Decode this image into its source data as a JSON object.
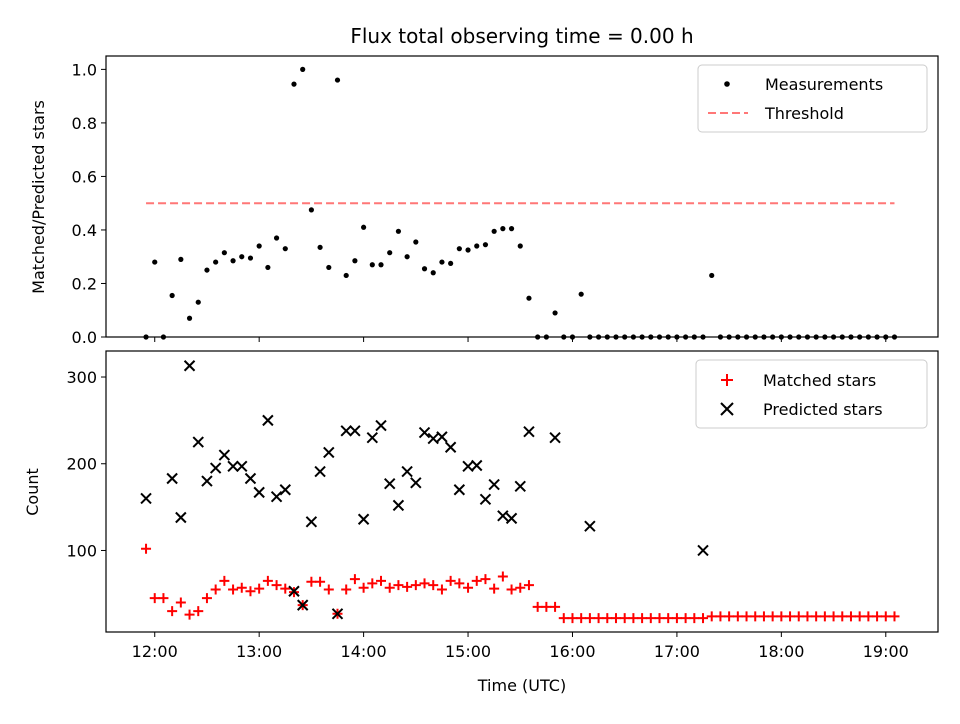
{
  "chart_data": [
    {
      "type": "scatter",
      "title": "Flux total observing time = 0.00 h",
      "xlabel": "",
      "ylabel": "Matched/Predicted stars",
      "xlim": [
        "11:32",
        "19:30"
      ],
      "ylim": [
        0,
        1.05
      ],
      "yticks": [
        "0.0",
        "0.2",
        "0.4",
        "0.6",
        "0.8",
        "1.0"
      ],
      "grid": false,
      "legend_position": "top-right",
      "series": [
        {
          "name": "Measurements",
          "color": "#000000",
          "marker": "dot",
          "x": [
            "11:55",
            "12:00",
            "12:05",
            "12:10",
            "12:15",
            "12:20",
            "12:25",
            "12:30",
            "12:35",
            "12:40",
            "12:45",
            "12:50",
            "12:55",
            "13:00",
            "13:05",
            "13:10",
            "13:15",
            "13:20",
            "13:25",
            "13:30",
            "13:35",
            "13:40",
            "13:45",
            "13:50",
            "13:55",
            "14:00",
            "14:05",
            "14:10",
            "14:15",
            "14:20",
            "14:25",
            "14:30",
            "14:35",
            "14:40",
            "14:45",
            "14:50",
            "14:55",
            "15:00",
            "15:05",
            "15:10",
            "15:15",
            "15:20",
            "15:25",
            "15:30",
            "15:35",
            "15:40",
            "15:45",
            "15:50",
            "15:55",
            "16:00",
            "16:05",
            "16:10",
            "16:15",
            "16:20",
            "16:25",
            "16:30",
            "16:35",
            "16:40",
            "16:45",
            "16:50",
            "16:55",
            "17:00",
            "17:05",
            "17:10",
            "17:15",
            "17:20",
            "17:25",
            "17:30",
            "17:35",
            "17:40",
            "17:45",
            "17:50",
            "17:55",
            "18:00",
            "18:05",
            "18:10",
            "18:15",
            "18:20",
            "18:25",
            "18:30",
            "18:35",
            "18:40",
            "18:45",
            "18:50",
            "18:55",
            "19:00",
            "19:05"
          ],
          "y": [
            0.0,
            0.28,
            0.0,
            0.155,
            0.29,
            0.07,
            0.13,
            0.25,
            0.28,
            0.315,
            0.285,
            0.3,
            0.295,
            0.34,
            0.26,
            0.37,
            0.33,
            0.945,
            1.0,
            0.475,
            0.335,
            0.26,
            0.96,
            0.23,
            0.285,
            0.41,
            0.27,
            0.27,
            0.315,
            0.395,
            0.3,
            0.355,
            0.255,
            0.24,
            0.28,
            0.275,
            0.33,
            0.325,
            0.34,
            0.345,
            0.395,
            0.405,
            0.405,
            0.34,
            0.145,
            0.0,
            0.0,
            0.09,
            0.0,
            0.0,
            0.16,
            0.0,
            0.0,
            0.0,
            0.0,
            0.0,
            0.0,
            0.0,
            0.0,
            0.0,
            0.0,
            0.0,
            0.0,
            0.0,
            0.0,
            0.23,
            0.0,
            0.0,
            0.0,
            0.0,
            0.0,
            0.0,
            0.0,
            0.0,
            0.0,
            0.0,
            0.0,
            0.0,
            0.0,
            0.0,
            0.0,
            0.0,
            0.0,
            0.0,
            0.0,
            0.0,
            0.0
          ]
        },
        {
          "name": "Threshold",
          "color": "#ff7777",
          "style": "dashed",
          "x": [
            "11:55",
            "19:05"
          ],
          "y": [
            0.5,
            0.5
          ]
        }
      ]
    },
    {
      "type": "scatter",
      "title": "",
      "xlabel": "Time (UTC)",
      "ylabel": "Count",
      "xlim": [
        "11:32",
        "19:30"
      ],
      "ylim": [
        6,
        330
      ],
      "xticks": [
        "12:00",
        "13:00",
        "14:00",
        "15:00",
        "16:00",
        "17:00",
        "18:00",
        "19:00"
      ],
      "yticks": [
        "100",
        "200",
        "300"
      ],
      "grid": false,
      "legend_position": "top-right",
      "series": [
        {
          "name": "Matched stars",
          "color": "#ff0000",
          "marker": "plus",
          "x": [
            "11:55",
            "12:00",
            "12:05",
            "12:10",
            "12:15",
            "12:20",
            "12:25",
            "12:30",
            "12:35",
            "12:40",
            "12:45",
            "12:50",
            "12:55",
            "13:00",
            "13:05",
            "13:10",
            "13:15",
            "13:20",
            "13:25",
            "13:30",
            "13:35",
            "13:40",
            "13:45",
            "13:50",
            "13:55",
            "14:00",
            "14:05",
            "14:10",
            "14:15",
            "14:20",
            "14:25",
            "14:30",
            "14:35",
            "14:40",
            "14:45",
            "14:50",
            "14:55",
            "15:00",
            "15:05",
            "15:10",
            "15:15",
            "15:20",
            "15:25",
            "15:30",
            "15:35",
            "15:40",
            "15:45",
            "15:50",
            "15:55",
            "16:00",
            "16:05",
            "16:10",
            "16:15",
            "16:20",
            "16:25",
            "16:30",
            "16:35",
            "16:40",
            "16:45",
            "16:50",
            "16:55",
            "17:00",
            "17:05",
            "17:10",
            "17:15",
            "17:20",
            "17:25",
            "17:30",
            "17:35",
            "17:40",
            "17:45",
            "17:50",
            "17:55",
            "18:00",
            "18:05",
            "18:10",
            "18:15",
            "18:20",
            "18:25",
            "18:30",
            "18:35",
            "18:40",
            "18:45",
            "18:50",
            "18:55",
            "19:00",
            "19:05"
          ],
          "y": [
            102,
            45,
            45,
            30,
            40,
            26,
            30,
            45,
            55,
            65,
            55,
            57,
            53,
            56,
            65,
            60,
            56,
            52,
            37,
            64,
            64,
            55,
            27,
            55,
            67,
            57,
            62,
            65,
            57,
            60,
            58,
            60,
            62,
            60,
            55,
            65,
            62,
            57,
            65,
            67,
            56,
            70,
            55,
            57,
            60,
            35,
            35,
            35,
            22,
            22,
            22,
            22,
            22,
            22,
            22,
            22,
            22,
            22,
            22,
            22,
            22,
            22,
            22,
            22,
            22,
            24,
            24,
            24,
            24,
            24,
            24,
            24,
            24,
            24,
            24,
            24,
            24,
            24,
            24,
            24,
            24,
            24,
            24,
            24,
            24,
            24,
            24
          ]
        },
        {
          "name": "Predicted stars",
          "color": "#000000",
          "marker": "x",
          "x": [
            "11:55",
            "12:10",
            "12:15",
            "12:20",
            "12:25",
            "12:30",
            "12:35",
            "12:40",
            "12:45",
            "12:50",
            "12:55",
            "13:00",
            "13:05",
            "13:10",
            "13:15",
            "13:20",
            "13:25",
            "13:30",
            "13:35",
            "13:40",
            "13:45",
            "13:50",
            "13:55",
            "14:00",
            "14:05",
            "14:10",
            "14:15",
            "14:20",
            "14:25",
            "14:30",
            "14:35",
            "14:40",
            "14:45",
            "14:50",
            "14:55",
            "15:00",
            "15:05",
            "15:10",
            "15:15",
            "15:20",
            "15:25",
            "15:30",
            "15:35",
            "15:50",
            "16:10",
            "17:15"
          ],
          "y": [
            160,
            183,
            138,
            313,
            225,
            180,
            195,
            210,
            197,
            197,
            183,
            167,
            250,
            162,
            170,
            53,
            37,
            133,
            191,
            213,
            27,
            238,
            238,
            136,
            230,
            244,
            177,
            152,
            191,
            178,
            236,
            229,
            231,
            219,
            170,
            197,
            198,
            159,
            176,
            140,
            137,
            174,
            237,
            230,
            128,
            100
          ]
        }
      ]
    }
  ]
}
